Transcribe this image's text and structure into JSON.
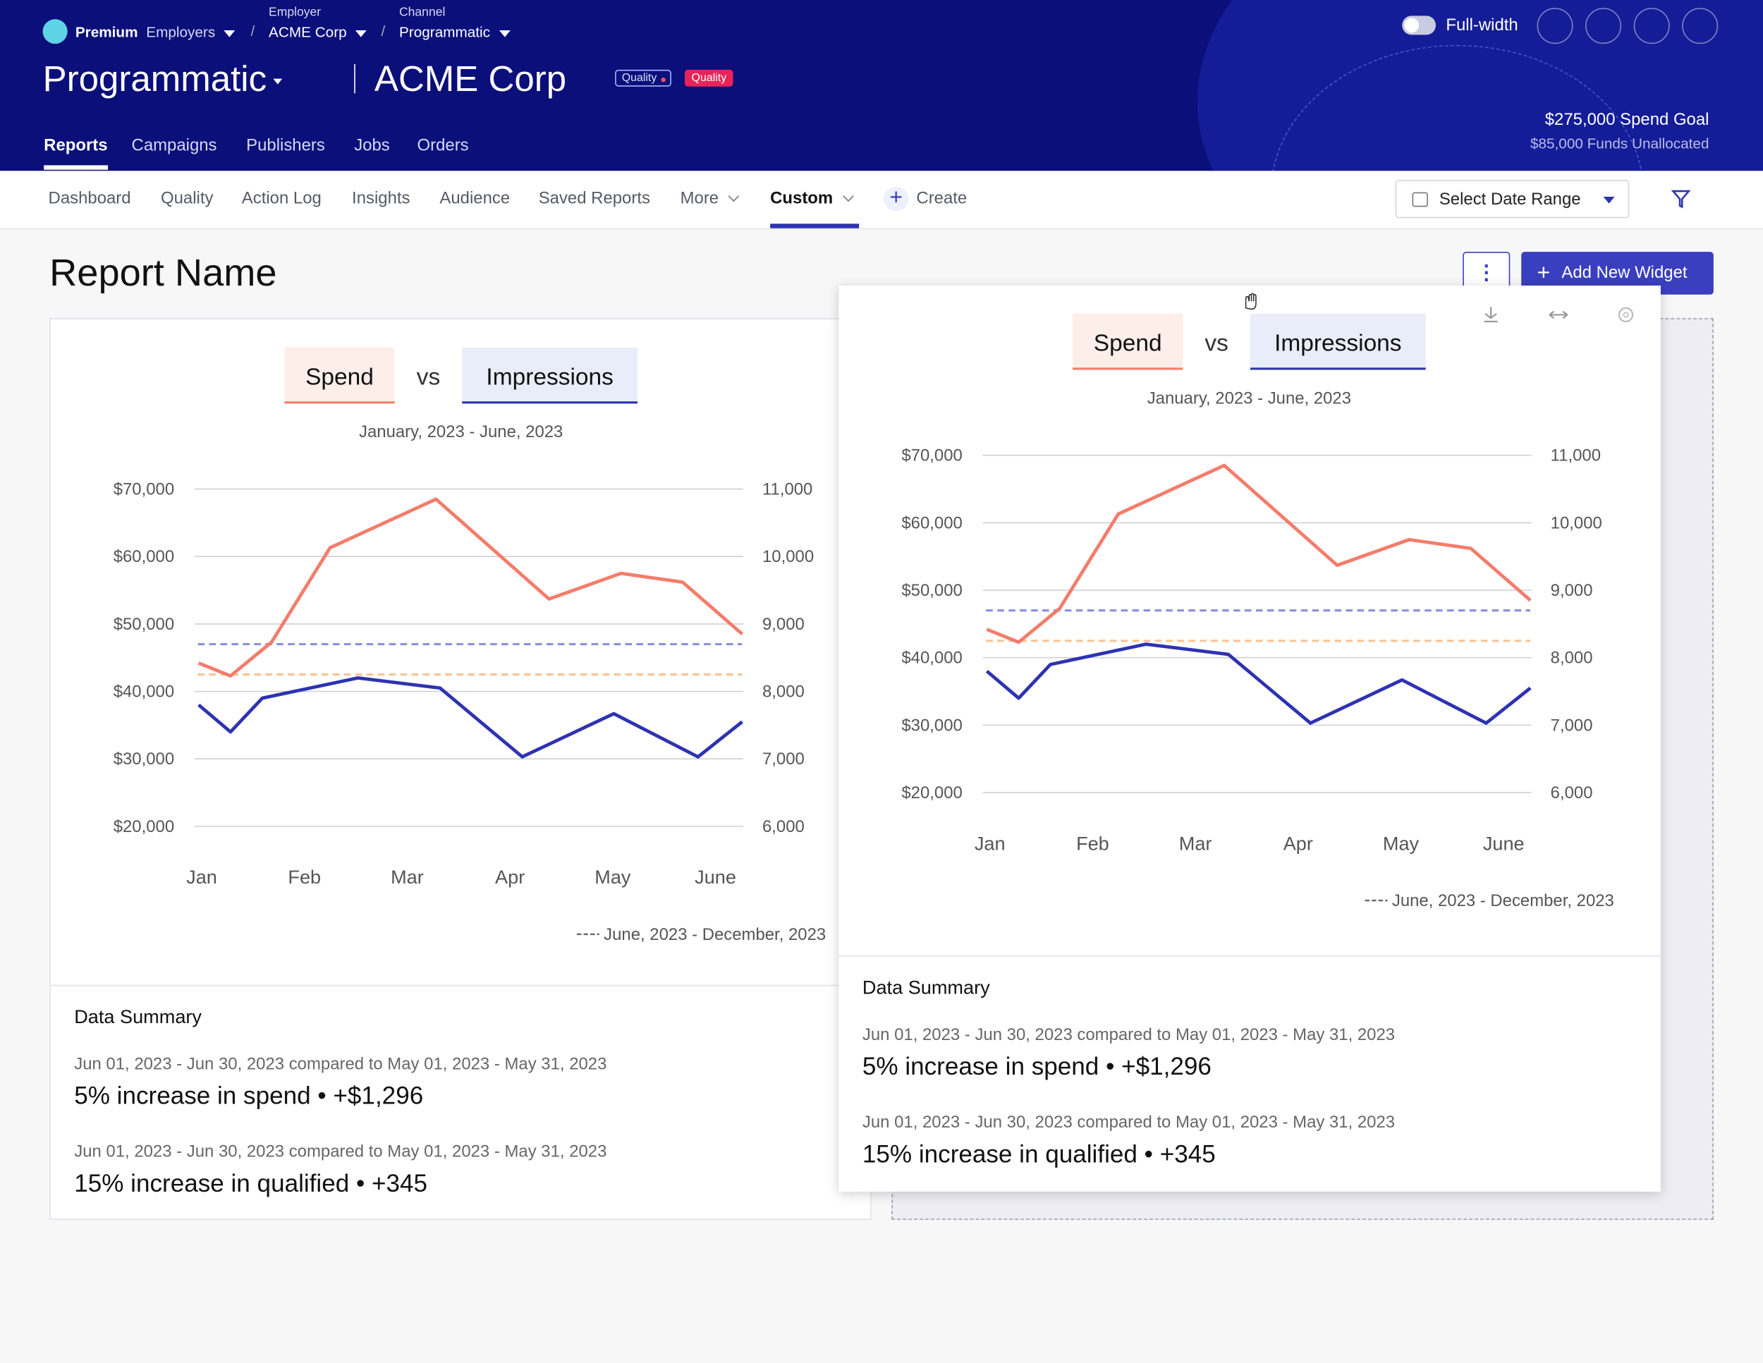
{
  "header": {
    "plan": "Premium",
    "employers": "Employers",
    "crumbs": [
      {
        "caption": "Employer",
        "label": "ACME Corp"
      },
      {
        "caption": "Channel",
        "label": "Programmatic"
      }
    ],
    "title": "Programmatic",
    "client": "ACME Corp",
    "badges": [
      "Quality",
      "Quality"
    ],
    "toggle": "Full-width",
    "goal": "$275,000 Spend Goal",
    "funds": "$85,000 Funds Unallocated",
    "tabs": [
      "Reports",
      "Campaigns",
      "Publishers",
      "Jobs",
      "Orders"
    ]
  },
  "subnav": {
    "tabs": [
      "Dashboard",
      "Quality",
      "Action Log",
      "Insights",
      "Audience",
      "Saved Reports",
      "More",
      "Custom"
    ],
    "create": "Create",
    "date_range": "Select Date Range"
  },
  "report": {
    "title": "Report Name",
    "add_widget": "Add New Widget"
  },
  "widgets": [
    {
      "summary_title": "Data Summary",
      "items": [
        {
          "period": "Jun 01, 2023 - Jun 30, 2023 compared to May 01, 2023 - May 31, 2023",
          "text": "5% increase in spend",
          "sep": "•",
          "delta": "+$1,296"
        },
        {
          "period": "Jun 01, 2023 - Jun 30, 2023 compared to May 01, 2023 - May 31, 2023",
          "text": "15% increase in qualified",
          "sep": "•",
          "delta": "+345"
        }
      ]
    },
    {
      "summary_title": "Data Summary",
      "items": [
        {
          "period": "Jun 01, 2023 - Jun 30, 2023 compared to May 01, 2023 - May 31, 2023",
          "text": "5% increase in spend",
          "sep": "•",
          "delta": "+$1,296"
        },
        {
          "period": "Jun 01, 2023 - Jun 30, 2023 compared to May 01, 2023 - May 31, 2023",
          "text": "15% increase in qualified",
          "sep": "•",
          "delta": "+345"
        }
      ]
    }
  ],
  "chart_data": [
    {
      "type": "line",
      "vs": "vs",
      "subtitle": "January, 2023 - June, 2023",
      "xlim": [
        -0.07,
        5.27
      ],
      "xticks": [
        {
          "value": 0,
          "label": "Jan"
        },
        {
          "value": 1,
          "label": "Feb"
        },
        {
          "value": 2,
          "label": "Mar"
        },
        {
          "value": 3,
          "label": "Apr"
        },
        {
          "value": 4,
          "label": "May"
        },
        {
          "value": 5,
          "label": "June"
        }
      ],
      "ylim": [
        20000,
        70000
      ],
      "yticks": [
        {
          "value": 20000,
          "label": "$20,000"
        },
        {
          "value": 30000,
          "label": "$30,000"
        },
        {
          "value": 40000,
          "label": "$40,000"
        },
        {
          "value": 50000,
          "label": "$50,000"
        },
        {
          "value": 60000,
          "label": "$60,000"
        },
        {
          "value": 70000,
          "label": "$70,000"
        }
      ],
      "y2lim": [
        6000,
        11000
      ],
      "y2ticks": [
        {
          "value": 6000,
          "label": "6,000"
        },
        {
          "value": 7000,
          "label": "7,000"
        },
        {
          "value": 8000,
          "label": "8,000"
        },
        {
          "value": 9000,
          "label": "9,000"
        },
        {
          "value": 10000,
          "label": "10,000"
        },
        {
          "value": 11000,
          "label": "11,000"
        }
      ],
      "grid": true,
      "series": [
        {
          "name": "Spend",
          "color": "#f47c6a",
          "pill_color": "#fdeee9",
          "x": [
            -0.03,
            0.28,
            0.68,
            1.25,
            2.28,
            3.38,
            4.08,
            4.68,
            5.26
          ],
          "values": [
            44200,
            42300,
            47300,
            61300,
            68500,
            53700,
            57500,
            56200,
            48500
          ]
        },
        {
          "name": "Impressions",
          "color": "#2d33b0",
          "pill_color": "#e9edf9",
          "axis": "y2",
          "x": [
            -0.03,
            0.28,
            0.59,
            1.52,
            2.32,
            3.12,
            4.01,
            4.83,
            5.26
          ],
          "values": [
            7800,
            7400,
            7900,
            8200,
            8050,
            7030,
            7670,
            7030,
            7550
          ]
        }
      ],
      "reference_lines": [
        {
          "value": 8700,
          "axis": "y2",
          "color": "#8c90e0"
        },
        {
          "value": 42500,
          "axis": "y",
          "color": "#f9c395"
        }
      ],
      "reference_label": "June, 2023 - December, 2023"
    },
    {
      "type": "line",
      "vs": "vs",
      "subtitle": "January, 2023 - June, 2023",
      "xlim": [
        -0.07,
        5.27
      ],
      "xticks": [
        {
          "value": 0,
          "label": "Jan"
        },
        {
          "value": 1,
          "label": "Feb"
        },
        {
          "value": 2,
          "label": "Mar"
        },
        {
          "value": 3,
          "label": "Apr"
        },
        {
          "value": 4,
          "label": "May"
        },
        {
          "value": 5,
          "label": "June"
        }
      ],
      "ylim": [
        20000,
        70000
      ],
      "yticks": [
        {
          "value": 20000,
          "label": "$20,000"
        },
        {
          "value": 30000,
          "label": "$30,000"
        },
        {
          "value": 40000,
          "label": "$40,000"
        },
        {
          "value": 50000,
          "label": "$50,000"
        },
        {
          "value": 60000,
          "label": "$60,000"
        },
        {
          "value": 70000,
          "label": "$70,000"
        }
      ],
      "y2lim": [
        6000,
        11000
      ],
      "y2ticks": [
        {
          "value": 6000,
          "label": "6,000"
        },
        {
          "value": 7000,
          "label": "7,000"
        },
        {
          "value": 8000,
          "label": "8,000"
        },
        {
          "value": 9000,
          "label": "9,000"
        },
        {
          "value": 10000,
          "label": "10,000"
        },
        {
          "value": 11000,
          "label": "11,000"
        }
      ],
      "grid": true,
      "series": [
        {
          "name": "Spend",
          "color": "#f47c6a",
          "pill_color": "#fdeee9",
          "x": [
            -0.03,
            0.28,
            0.68,
            1.25,
            2.28,
            3.38,
            4.08,
            4.68,
            5.26
          ],
          "values": [
            44200,
            42300,
            47300,
            61300,
            68500,
            53700,
            57500,
            56200,
            48500
          ]
        },
        {
          "name": "Impressions",
          "color": "#2d33b0",
          "pill_color": "#e9edf9",
          "axis": "y2",
          "x": [
            -0.03,
            0.28,
            0.59,
            1.52,
            2.32,
            3.12,
            4.01,
            4.83,
            5.26
          ],
          "values": [
            7800,
            7400,
            7900,
            8200,
            8050,
            7030,
            7670,
            7030,
            7550
          ]
        }
      ],
      "reference_lines": [
        {
          "value": 8700,
          "axis": "y2",
          "color": "#8c90e0"
        },
        {
          "value": 42500,
          "axis": "y",
          "color": "#f9c395"
        }
      ],
      "reference_label": "June, 2023 - December, 2023"
    }
  ]
}
